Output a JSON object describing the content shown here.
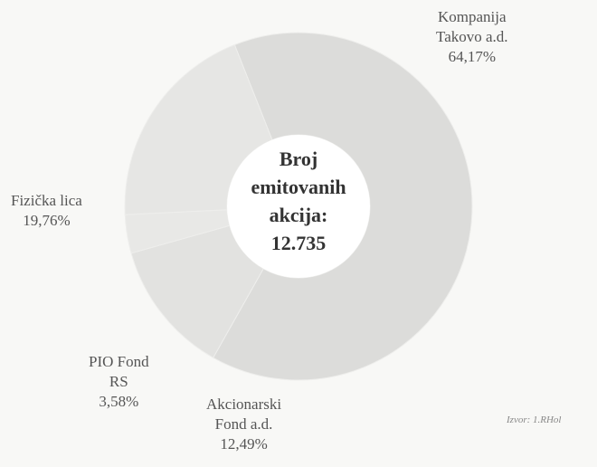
{
  "chart_data": {
    "type": "pie",
    "donut": true,
    "slices": [
      {
        "name_lines": [
          "Kompanija",
          "Takovo a.d."
        ],
        "value": 64.17,
        "value_label": "64,17%",
        "color": "#dcdcda"
      },
      {
        "name_lines": [
          "Akcionarski",
          "Fond a.d."
        ],
        "value": 12.49,
        "value_label": "12,49%",
        "color": "#e2e2e0"
      },
      {
        "name_lines": [
          "PIO Fond",
          "RS"
        ],
        "value": 3.58,
        "value_label": "3,58%",
        "color": "#e8e8e6"
      },
      {
        "name_lines": [
          "Fizička lica"
        ],
        "value": 19.76,
        "value_label": "19,76%",
        "color": "#e6e6e4"
      }
    ],
    "center_label": [
      "Broj",
      "emitovanih",
      "akcija:",
      "12.735"
    ],
    "source_note": "Izvor: 1.RHol"
  }
}
